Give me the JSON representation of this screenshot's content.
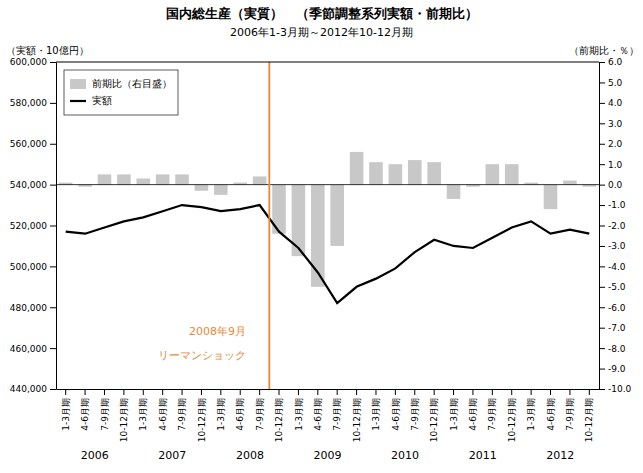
{
  "chart_data": {
    "type": "bar",
    "title": "国内総生産（実質）　（季節調整系列実額・前期比）",
    "subtitle": "2006年1-3月期～2012年10-12月期",
    "y_label": "（実額・10億円）",
    "y2_label": "（前期比・％）",
    "categories": [
      "1-3月期",
      "4-6月期",
      "7-9月期",
      "10-12月期",
      "1-3月期",
      "4-6月期",
      "7-9月期",
      "10-12月期",
      "1-3月期",
      "4-6月期",
      "7-9月期",
      "10-12月期",
      "1-3月期",
      "4-6月期",
      "7-9月期",
      "10-12月期",
      "1-3月期",
      "4-6月期",
      "7-9月期",
      "10-12月期",
      "1-3月期",
      "4-6月期",
      "7-9月期",
      "10-12月期",
      "1-3月期",
      "4-6月期",
      "7-9月期",
      "10-12月期"
    ],
    "category_groups": [
      "2006",
      "2006",
      "2006",
      "2006",
      "2007",
      "2007",
      "2007",
      "2007",
      "2008",
      "2008",
      "2008",
      "2008",
      "2009",
      "2009",
      "2009",
      "2009",
      "2010",
      "2010",
      "2010",
      "2010",
      "2011",
      "2011",
      "2011",
      "2011",
      "2012",
      "2012",
      "2012",
      "2012"
    ],
    "series": [
      {
        "name": "前期比（右目盛）",
        "type": "bar",
        "axis": "y2",
        "color": "#c8c8c8",
        "values": [
          0.1,
          -0.1,
          0.5,
          0.5,
          0.3,
          0.5,
          0.5,
          -0.3,
          -0.5,
          0.1,
          0.4,
          -2.4,
          -3.5,
          -5.0,
          -3.0,
          1.6,
          1.1,
          1.0,
          1.2,
          1.1,
          -0.7,
          -0.1,
          1.0,
          1.0,
          0.1,
          -1.2,
          0.2,
          -0.1
        ]
      },
      {
        "name": "実額",
        "type": "line",
        "axis": "y",
        "color": "#000000",
        "values": [
          517000,
          516000,
          519000,
          522000,
          524000,
          527000,
          530000,
          529000,
          527000,
          528000,
          530000,
          517000,
          509000,
          497000,
          482000,
          490000,
          494000,
          499000,
          507000,
          513000,
          510000,
          509000,
          514000,
          519000,
          522000,
          516000,
          518000,
          516000
        ]
      }
    ],
    "ylim": [
      440000,
      600000
    ],
    "yticks": [
      {
        "value": 440000,
        "label": "440,000"
      },
      {
        "value": 460000,
        "label": "460,000"
      },
      {
        "value": 480000,
        "label": "480,000"
      },
      {
        "value": 500000,
        "label": "500,000"
      },
      {
        "value": 520000,
        "label": "520,000"
      },
      {
        "value": 540000,
        "label": "540,000"
      },
      {
        "value": 560000,
        "label": "560,000"
      },
      {
        "value": 580000,
        "label": "580,000"
      },
      {
        "value": 600000,
        "label": "600,000"
      }
    ],
    "y2lim": [
      -10.0,
      6.0
    ],
    "y2ticks": [
      {
        "value": -10.0,
        "label": "-10.0"
      },
      {
        "value": -9.0,
        "label": "-9.0"
      },
      {
        "value": -8.0,
        "label": "-8.0"
      },
      {
        "value": -7.0,
        "label": "-7.0"
      },
      {
        "value": -6.0,
        "label": "-6.0"
      },
      {
        "value": -5.0,
        "label": "-5.0"
      },
      {
        "value": -4.0,
        "label": "-4.0"
      },
      {
        "value": -3.0,
        "label": "-3.0"
      },
      {
        "value": -2.0,
        "label": "-2.0"
      },
      {
        "value": -1.0,
        "label": "-1.0"
      },
      {
        "value": 0.0,
        "label": "0.0"
      },
      {
        "value": 1.0,
        "label": "1.0"
      },
      {
        "value": 2.0,
        "label": "2.0"
      },
      {
        "value": 3.0,
        "label": "3.0"
      },
      {
        "value": 4.0,
        "label": "4.0"
      },
      {
        "value": 5.0,
        "label": "5.0"
      },
      {
        "value": 6.0,
        "label": "6.0"
      }
    ],
    "vlines": [
      {
        "x": 10.5,
        "color": "#e8893a"
      }
    ],
    "annotations": [
      {
        "text": "2008年9月",
        "x": 9.3,
        "y": 468000,
        "color": "#e8893a"
      },
      {
        "text": "リーマンショック",
        "x": 9.3,
        "y": 456000,
        "color": "#e8893a"
      }
    ],
    "legend": "upper left",
    "grid": false
  }
}
